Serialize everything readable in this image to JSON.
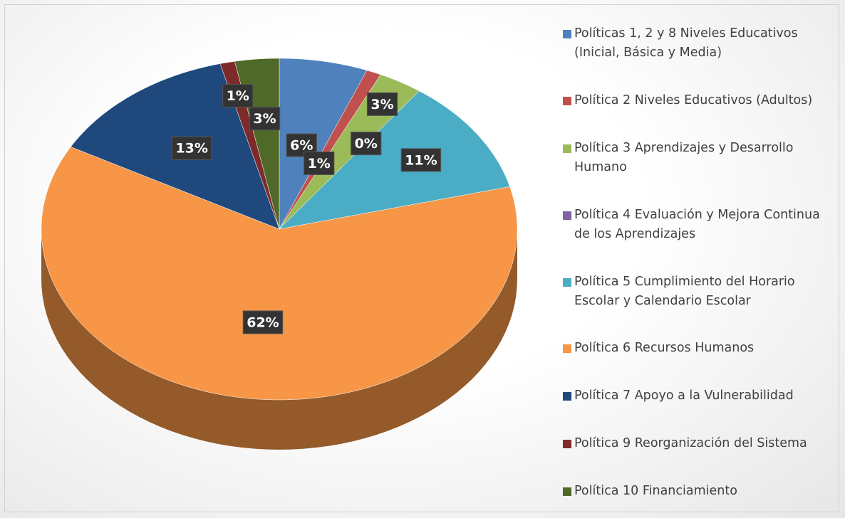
{
  "chart_data": {
    "type": "pie",
    "categories": [
      "Políticas 1, 2 y 8 Niveles Educativos (Inicial, Básica y Media)",
      "Política 2 Niveles Educativos (Adultos)",
      "Política 3 Aprendizajes y Desarrollo Humano",
      "Política 4 Evaluación y Mejora Continua de los Aprendizajes",
      "Política 5 Cumplimiento del Horario Escolar y Calendario Escolar",
      "Política 6 Recursos Humanos",
      "Política 7 Apoyo a la Vulnerabilidad",
      "Política 9 Reorganización del Sistema",
      "Política 10 Financiamiento"
    ],
    "values": [
      6,
      1,
      3,
      0,
      11,
      62,
      13,
      1,
      3
    ],
    "value_labels": [
      "6%",
      "1%",
      "3%",
      "0%",
      "11%",
      "62%",
      "13%",
      "1%",
      "3%"
    ],
    "colors": [
      "#4f81bd",
      "#c0504d",
      "#9bbb59",
      "#8064a2",
      "#4bacc6",
      "#f79646",
      "#1f497d",
      "#7f2a2a",
      "#4f6a28"
    ],
    "legend": "right"
  }
}
